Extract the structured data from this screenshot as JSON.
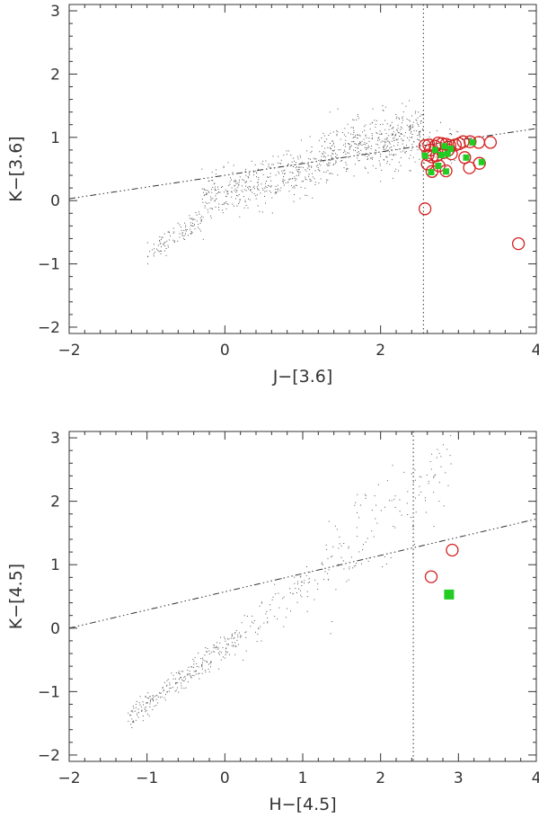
{
  "chart_data": [
    {
      "type": "scatter",
      "xlabel": "J−[3.6]",
      "ylabel": "K−[3.6]",
      "xlim": [
        -2,
        4
      ],
      "ylim": [
        -2.1,
        3.1
      ],
      "xticks": [
        -2,
        0,
        2,
        4
      ],
      "yticks": [
        -2,
        -1,
        0,
        1,
        2,
        3
      ],
      "xtick_labels": [
        "−2",
        "0",
        "2",
        "4"
      ],
      "ytick_labels": [
        "−2",
        "−1",
        "0",
        "1",
        "2",
        "3"
      ],
      "vline_x": 2.55,
      "dashdot_line": [
        [
          -2,
          0.03
        ],
        [
          4,
          1.14
        ]
      ],
      "colors": {
        "field": "#555555",
        "circle": "#d42020",
        "square": "#22cc22",
        "axis": "#333333"
      },
      "circles": [
        [
          2.57,
          0.87
        ],
        [
          2.61,
          0.72
        ],
        [
          2.62,
          0.88
        ],
        [
          2.64,
          0.8
        ],
        [
          2.66,
          0.69
        ],
        [
          2.7,
          0.86
        ],
        [
          2.74,
          0.91
        ],
        [
          2.79,
          0.9
        ],
        [
          2.84,
          0.89
        ],
        [
          2.89,
          0.87
        ],
        [
          2.96,
          0.88
        ],
        [
          3.01,
          0.9
        ],
        [
          3.06,
          0.93
        ],
        [
          3.15,
          0.93
        ],
        [
          3.26,
          0.92
        ],
        [
          3.41,
          0.92
        ],
        [
          2.6,
          0.58
        ],
        [
          2.66,
          0.46
        ],
        [
          2.75,
          0.55
        ],
        [
          2.84,
          0.47
        ],
        [
          2.81,
          0.76
        ],
        [
          2.91,
          0.74
        ],
        [
          3.14,
          0.52
        ],
        [
          3.27,
          0.59
        ],
        [
          3.08,
          0.68
        ],
        [
          2.57,
          -0.13
        ],
        [
          3.77,
          -0.68
        ],
        [
          2.72,
          0.71
        ],
        [
          2.87,
          0.8
        ]
      ],
      "squares": [
        [
          2.57,
          0.71
        ],
        [
          2.65,
          0.45
        ],
        [
          2.7,
          0.8
        ],
        [
          2.74,
          0.55
        ],
        [
          2.78,
          0.72
        ],
        [
          2.82,
          0.86
        ],
        [
          2.84,
          0.46
        ],
        [
          2.86,
          0.74
        ],
        [
          2.9,
          0.82
        ],
        [
          3.1,
          0.68
        ],
        [
          3.18,
          0.92
        ],
        [
          3.3,
          0.61
        ]
      ],
      "field": {
        "bands": [
          {
            "x0": -1.0,
            "x1": -0.3,
            "slope": 0.85,
            "intercept": 0.0,
            "scatter": 0.09,
            "n": 110
          },
          {
            "x0": -0.3,
            "x1": 1.2,
            "slope": 0.35,
            "intercept": 0.12,
            "scatter": 0.18,
            "n": 380
          },
          {
            "x0": 1.2,
            "x1": 2.55,
            "slope": 0.32,
            "intercept": 0.3,
            "scatter": 0.22,
            "n": 470
          },
          {
            "x0": 2.55,
            "x1": 3.0,
            "slope": 0.05,
            "intercept": 0.7,
            "scatter": 0.22,
            "n": 40
          }
        ]
      }
    },
    {
      "type": "scatter",
      "xlabel": "H−[4.5]",
      "ylabel": "K−[4.5]",
      "xlim": [
        -2,
        4
      ],
      "ylim": [
        -2.1,
        3.1
      ],
      "xticks": [
        -2,
        -1,
        0,
        1,
        2,
        3,
        4
      ],
      "yticks": [
        -2,
        -1,
        0,
        1,
        2,
        3
      ],
      "xtick_labels": [
        "−2",
        "−1",
        "0",
        "1",
        "2",
        "3",
        "4"
      ],
      "ytick_labels": [
        "−2",
        "−1",
        "0",
        "1",
        "2",
        "3"
      ],
      "vline_x": 2.42,
      "dashdot_line": [
        [
          -2,
          0.0
        ],
        [
          4,
          1.72
        ]
      ],
      "colors": {
        "field": "#555555",
        "circle": "#d42020",
        "square": "#22cc22",
        "axis": "#333333"
      },
      "circles": [
        [
          2.65,
          0.81
        ],
        [
          2.92,
          1.23
        ]
      ],
      "squares": [
        [
          2.88,
          0.53
        ]
      ],
      "field": {
        "bands": [
          {
            "x0": -1.25,
            "x1": 0.2,
            "slope": 0.9,
            "intercept": -0.3,
            "scatter": 0.1,
            "n": 260
          },
          {
            "x0": 0.2,
            "x1": 1.3,
            "slope": 0.95,
            "intercept": -0.3,
            "scatter": 0.18,
            "n": 90
          },
          {
            "x0": 1.3,
            "x1": 2.9,
            "slope": 0.95,
            "intercept": -0.2,
            "scatter": 0.35,
            "n": 130
          }
        ]
      }
    }
  ]
}
